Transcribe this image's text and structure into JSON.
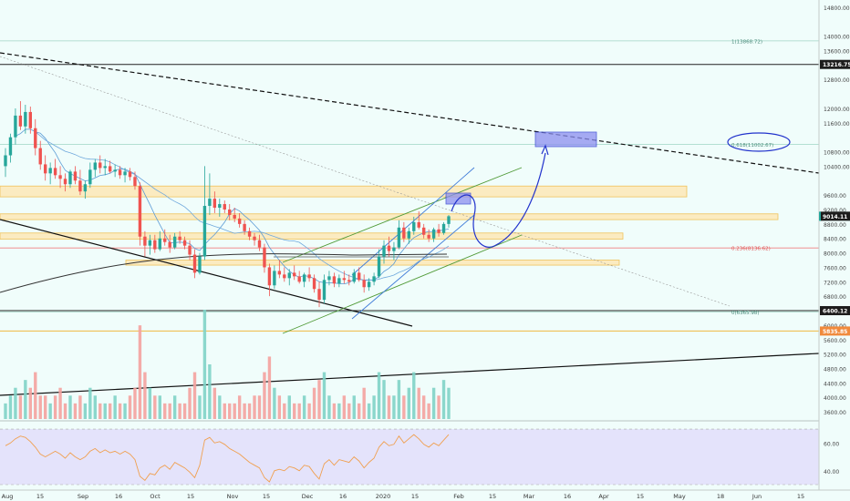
{
  "colors": {
    "background": "#f0fdfb",
    "up": "#26a69a",
    "down": "#ef5350",
    "volume_up": "#7fd3c6",
    "volume_down": "#f4a29e",
    "ma_fast": "#5b9bd5",
    "ma_slow": "#333333",
    "zone_fill": "#fde8b8",
    "zone_stroke": "#f0b840",
    "projection": "#2233cc",
    "target_box": "#8c8ff0",
    "rsi_line": "#f0a050",
    "rsi_band": "#e2e0fb",
    "green_line": "#4f9a36",
    "blue_channel": "#3f7bd8",
    "fib_line": "#9fd4c4",
    "price_label_bg": "#1c1c1c",
    "price_label_red": "#f08a3c"
  },
  "chart_data": [
    {
      "type": "candlestick",
      "instrument": "BTC/USD",
      "timeframe": "1D",
      "x_tick_labels": [
        "Aug",
        "15",
        "Sep",
        "16",
        "Oct",
        "15",
        "Nov",
        "15",
        "Dec",
        "16",
        "2020",
        "15",
        "Feb",
        "15",
        "Mar",
        "16",
        "Apr",
        "15",
        "May",
        "18",
        "Jun",
        "15"
      ],
      "y_tick_labels": [
        "14800.00",
        "14000.00",
        "13600.00",
        "12800.00",
        "12000.00",
        "11600.00",
        "10800.00",
        "10400.00",
        "9600.00",
        "9200.00",
        "8800.00",
        "8400.00",
        "8000.00",
        "7600.00",
        "7200.00",
        "6800.00",
        "6000.00",
        "5600.00",
        "5200.00",
        "4800.00",
        "4400.00",
        "4000.00",
        "3600.00"
      ],
      "ylim": [
        3400,
        15000
      ],
      "price_labels": [
        {
          "text": "13216.75",
          "value": 13216.75,
          "style": "dark"
        },
        {
          "text": "9014.11",
          "value": 9014.11,
          "style": "dark"
        },
        {
          "text": "6400.12",
          "value": 6400.12,
          "style": "dark"
        },
        {
          "text": "5835.85",
          "value": 5835.85,
          "style": "orange"
        }
      ],
      "fib_levels": [
        {
          "text": "1(13868.72)",
          "value": 13868.72
        },
        {
          "text": "0.618(11002.67)",
          "value": 11002.67
        },
        {
          "text": "0.236(8136.62)",
          "value": 8136.62
        },
        {
          "text": "0(6365.98)",
          "value": 6365.98
        }
      ],
      "candles": [
        [
          10400,
          10900,
          10100,
          10700
        ],
        [
          10700,
          11300,
          10500,
          11200
        ],
        [
          11200,
          12000,
          11000,
          11800
        ],
        [
          11800,
          12200,
          11400,
          11500
        ],
        [
          11500,
          12100,
          11300,
          11900
        ],
        [
          11900,
          12050,
          11300,
          11450
        ],
        [
          11450,
          11700,
          10700,
          10900
        ],
        [
          10900,
          11100,
          10300,
          10450
        ],
        [
          10450,
          10700,
          10000,
          10200
        ],
        [
          10200,
          10500,
          9900,
          10350
        ],
        [
          10350,
          10600,
          10050,
          10150
        ],
        [
          10150,
          10400,
          9800,
          10050
        ],
        [
          10050,
          10200,
          9700,
          9900
        ],
        [
          9900,
          10300,
          9800,
          10250
        ],
        [
          10250,
          10400,
          9900,
          10000
        ],
        [
          10000,
          10300,
          9600,
          9700
        ],
        [
          9700,
          10000,
          9500,
          9900
        ],
        [
          9900,
          10500,
          9800,
          10300
        ],
        [
          10300,
          10600,
          10100,
          10500
        ],
        [
          10500,
          10700,
          10200,
          10350
        ],
        [
          10350,
          10600,
          10150,
          10400
        ],
        [
          10400,
          10550,
          10200,
          10250
        ],
        [
          10250,
          10450,
          10100,
          10300
        ],
        [
          10300,
          10400,
          10050,
          10150
        ],
        [
          10150,
          10350,
          9950,
          10250
        ],
        [
          10250,
          10350,
          10000,
          10100
        ],
        [
          10100,
          10250,
          9750,
          9850
        ],
        [
          9850,
          9950,
          8200,
          8450
        ],
        [
          8450,
          8600,
          7900,
          8200
        ],
        [
          8200,
          8500,
          7950,
          8350
        ],
        [
          8350,
          8500,
          8000,
          8100
        ],
        [
          8100,
          8600,
          8050,
          8400
        ],
        [
          8400,
          8650,
          8200,
          8300
        ],
        [
          8300,
          8500,
          8000,
          8150
        ],
        [
          8150,
          8550,
          8100,
          8450
        ],
        [
          8450,
          8600,
          8250,
          8350
        ],
        [
          8350,
          8450,
          8100,
          8200
        ],
        [
          8200,
          8350,
          7800,
          7950
        ],
        [
          7950,
          8100,
          7300,
          7450
        ],
        [
          7450,
          8000,
          7400,
          7900
        ],
        [
          7900,
          10400,
          7800,
          9300
        ],
        [
          9300,
          10200,
          9050,
          9500
        ],
        [
          9500,
          9700,
          9100,
          9250
        ],
        [
          9250,
          9500,
          9000,
          9350
        ],
        [
          9350,
          9450,
          9100,
          9200
        ],
        [
          9200,
          9350,
          8900,
          9050
        ],
        [
          9050,
          9250,
          8850,
          8950
        ],
        [
          8950,
          9100,
          8700,
          8800
        ],
        [
          8800,
          8900,
          8500,
          8600
        ],
        [
          8600,
          8700,
          8350,
          8450
        ],
        [
          8450,
          8550,
          8200,
          8350
        ],
        [
          8350,
          8500,
          8050,
          8150
        ],
        [
          8150,
          8250,
          7450,
          7600
        ],
        [
          7600,
          7700,
          6800,
          7100
        ],
        [
          7100,
          7650,
          7000,
          7500
        ],
        [
          7500,
          7800,
          7300,
          7400
        ],
        [
          7400,
          7600,
          7200,
          7300
        ],
        [
          7300,
          7550,
          7100,
          7450
        ],
        [
          7450,
          7650,
          7250,
          7350
        ],
        [
          7350,
          7500,
          7150,
          7200
        ],
        [
          7200,
          7450,
          7050,
          7400
        ],
        [
          7400,
          7600,
          7200,
          7300
        ],
        [
          7300,
          7400,
          6900,
          7000
        ],
        [
          7000,
          7200,
          6500,
          6700
        ],
        [
          6700,
          7400,
          6600,
          7250
        ],
        [
          7250,
          7500,
          7100,
          7350
        ],
        [
          7350,
          7450,
          7050,
          7150
        ],
        [
          7150,
          7400,
          7050,
          7300
        ],
        [
          7300,
          7500,
          7150,
          7250
        ],
        [
          7250,
          7400,
          7100,
          7200
        ],
        [
          7200,
          7550,
          7150,
          7450
        ],
        [
          7450,
          7600,
          7200,
          7250
        ],
        [
          7250,
          7400,
          6900,
          7050
        ],
        [
          7050,
          7300,
          6950,
          7200
        ],
        [
          7200,
          7450,
          7100,
          7350
        ],
        [
          7350,
          8100,
          7300,
          7900
        ],
        [
          7900,
          8350,
          7700,
          8200
        ],
        [
          8200,
          8450,
          7900,
          8050
        ],
        [
          8050,
          8300,
          7800,
          8150
        ],
        [
          8150,
          8900,
          8100,
          8700
        ],
        [
          8700,
          8850,
          8300,
          8400
        ],
        [
          8400,
          8700,
          8250,
          8600
        ],
        [
          8600,
          9000,
          8500,
          8850
        ],
        [
          8850,
          9150,
          8650,
          8700
        ],
        [
          8700,
          8800,
          8400,
          8500
        ],
        [
          8500,
          8650,
          8300,
          8400
        ],
        [
          8400,
          8700,
          8300,
          8650
        ],
        [
          8650,
          8800,
          8450,
          8550
        ],
        [
          8550,
          8850,
          8500,
          8800
        ],
        [
          8800,
          9050,
          8700,
          9014
        ]
      ],
      "volumes": [
        2,
        3,
        4,
        3,
        5,
        4,
        6,
        3,
        3,
        2,
        3,
        4,
        2,
        3,
        2,
        3,
        2,
        4,
        3,
        2,
        2,
        2,
        3,
        2,
        2,
        3,
        4,
        12,
        6,
        4,
        3,
        3,
        2,
        2,
        3,
        2,
        2,
        4,
        6,
        3,
        14,
        7,
        4,
        3,
        2,
        2,
        2,
        3,
        2,
        2,
        3,
        3,
        6,
        8,
        4,
        3,
        2,
        3,
        2,
        2,
        3,
        2,
        4,
        5,
        6,
        3,
        2,
        2,
        3,
        2,
        3,
        2,
        4,
        2,
        3,
        6,
        5,
        3,
        3,
        5,
        3,
        4,
        6,
        4,
        3,
        2,
        4,
        3,
        5,
        4
      ],
      "rsi_ylim": [
        30,
        72
      ],
      "rsi_tick_labels": [
        "60.00",
        "40.00"
      ],
      "rsi_values": [
        58,
        60,
        63,
        65,
        64,
        61,
        57,
        52,
        50,
        52,
        54,
        52,
        49,
        53,
        50,
        48,
        50,
        54,
        56,
        53,
        55,
        53,
        54,
        52,
        54,
        52,
        48,
        36,
        33,
        38,
        37,
        42,
        44,
        41,
        46,
        44,
        42,
        39,
        35,
        44,
        62,
        64,
        60,
        61,
        59,
        56,
        54,
        52,
        49,
        46,
        44,
        42,
        35,
        32,
        40,
        41,
        40,
        43,
        42,
        40,
        44,
        43,
        38,
        34,
        45,
        48,
        44,
        48,
        47,
        46,
        50,
        47,
        42,
        46,
        49,
        57,
        61,
        58,
        59,
        65,
        60,
        63,
        66,
        63,
        59,
        57,
        60,
        58,
        62,
        66
      ]
    }
  ]
}
